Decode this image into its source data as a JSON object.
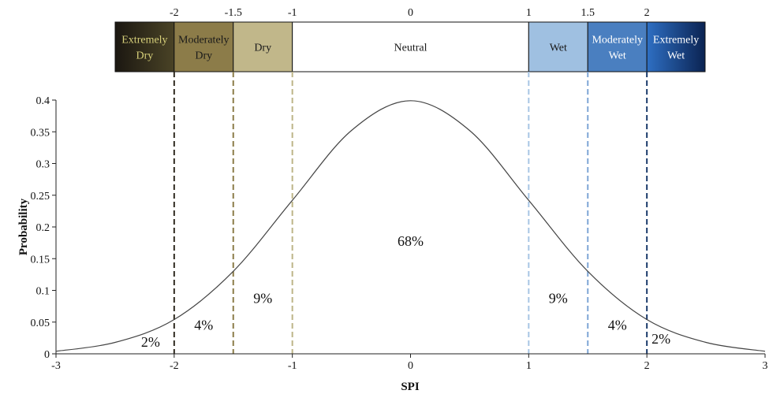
{
  "chart_data": {
    "type": "line",
    "title": "",
    "xlabel": "SPI",
    "ylabel": "Probability",
    "xlim": [
      -3,
      3
    ],
    "ylim": [
      0,
      0.4
    ],
    "x_ticks": [
      "-3",
      "-2",
      "-1",
      "0",
      "1",
      "2",
      "3"
    ],
    "y_ticks": [
      "0",
      "0.05",
      "0.1",
      "0.15",
      "0.2",
      "0.25",
      "0.3",
      "0.35",
      "0.4"
    ],
    "grid": false,
    "series": [
      {
        "x": [
          -3,
          -2.5,
          -2,
          -1.5,
          -1,
          -0.5,
          0,
          0.5,
          1,
          1.5,
          2,
          2.5,
          3
        ],
        "y": [
          0.004,
          0.018,
          0.054,
          0.13,
          0.242,
          0.352,
          0.399,
          0.352,
          0.242,
          0.13,
          0.054,
          0.018,
          0.004
        ]
      }
    ],
    "classes": [
      {
        "label_lines": [
          "Extremely",
          "Dry"
        ],
        "from": -3,
        "to": -2,
        "color": "#2b2617",
        "text_color": "#d7d07a",
        "line_color": "#2f2a20"
      },
      {
        "label_lines": [
          "Moderately",
          "Dry"
        ],
        "from": -2,
        "to": -1.5,
        "color": "#8c7c49",
        "text_color": "#1a1a1a",
        "line_color": "#8b7c48"
      },
      {
        "label_lines": [
          "Dry"
        ],
        "from": -1.5,
        "to": -1,
        "color": "#c1b78a",
        "text_color": "#1a1a1a",
        "line_color": "#bdb487"
      },
      {
        "label_lines": [
          "Neutral"
        ],
        "from": -1,
        "to": 1,
        "color": "#ffffff",
        "text_color": "#1a1a1a",
        "line_color": null
      },
      {
        "label_lines": [
          "Wet"
        ],
        "from": 1,
        "to": 1.5,
        "color": "#9fc0e1",
        "text_color": "#1a1a1a",
        "line_color": "#a7c5e4"
      },
      {
        "label_lines": [
          "Moderately",
          "Wet"
        ],
        "from": 1.5,
        "to": 2,
        "color": "#4a7fc0",
        "text_color": "#ffffff",
        "line_color": "#7ea5d6"
      },
      {
        "label_lines": [
          "Extremely",
          "Wet"
        ],
        "from": 2,
        "to": 3,
        "color": "#1a4f9f",
        "text_color": "#ffffff",
        "line_color": "#1b3b6b"
      }
    ],
    "band_boundary_labels": [
      {
        "x": -2,
        "label": "-2"
      },
      {
        "x": -1.5,
        "label": "-1.5"
      },
      {
        "x": -1,
        "label": "-1"
      },
      {
        "x": 0,
        "label": "0"
      },
      {
        "x": 1,
        "label": "1"
      },
      {
        "x": 1.5,
        "label": "1.5"
      },
      {
        "x": 2,
        "label": "2"
      }
    ],
    "annotations": [
      {
        "text": "2%",
        "x": -2.2,
        "y": 0.011
      },
      {
        "text": "4%",
        "x": -1.75,
        "y": 0.038
      },
      {
        "text": "9%",
        "x": -1.25,
        "y": 0.08
      },
      {
        "text": "68%",
        "x": 0,
        "y": 0.17
      },
      {
        "text": "9%",
        "x": 1.25,
        "y": 0.08
      },
      {
        "text": "4%",
        "x": 1.75,
        "y": 0.038
      },
      {
        "text": "2%",
        "x": 2.12,
        "y": 0.016
      }
    ]
  }
}
